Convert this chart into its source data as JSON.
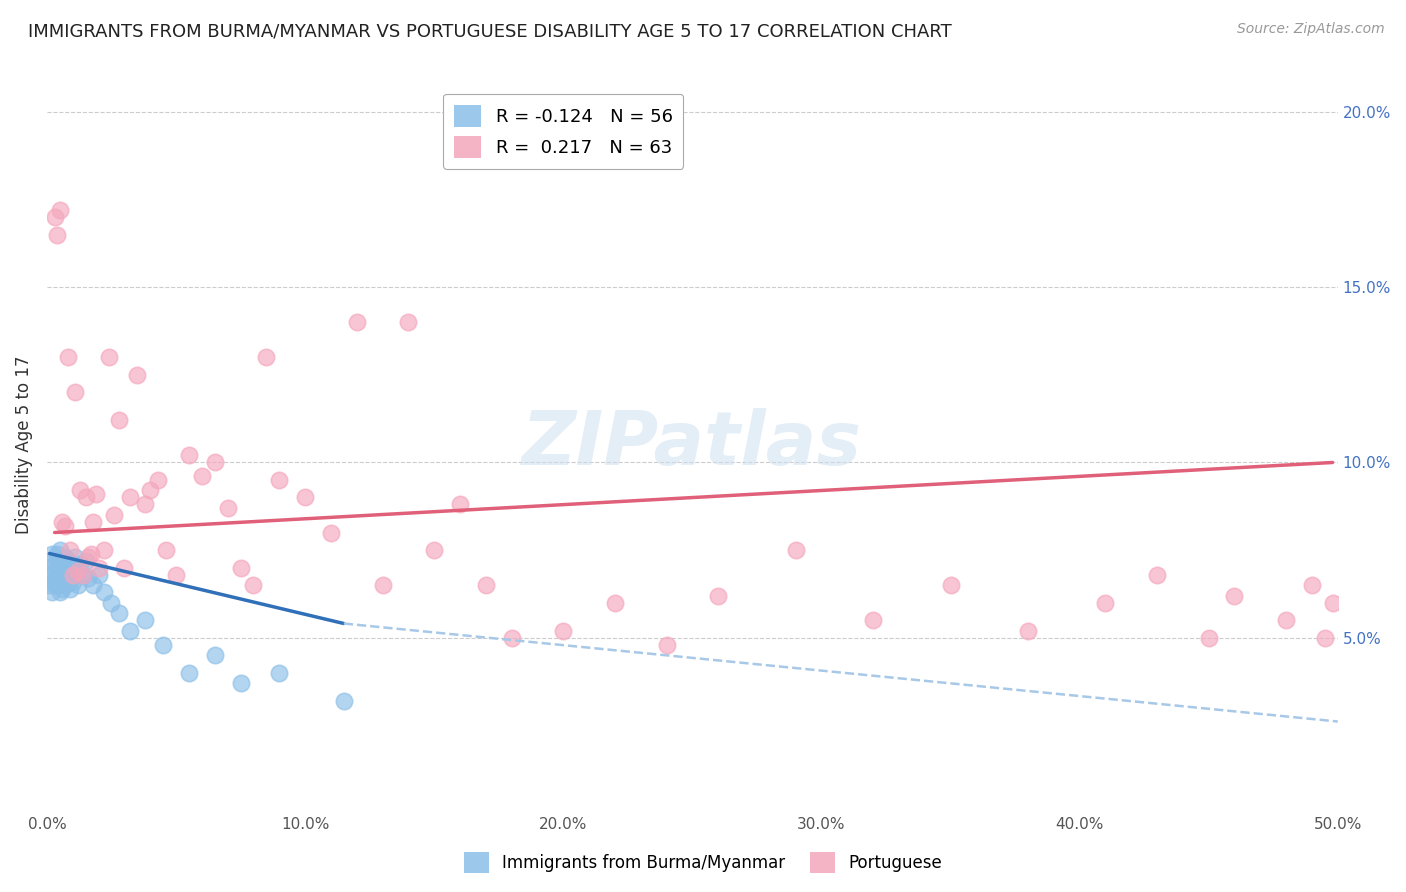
{
  "title": "IMMIGRANTS FROM BURMA/MYANMAR VS PORTUGUESE DISABILITY AGE 5 TO 17 CORRELATION CHART",
  "source": "Source: ZipAtlas.com",
  "ylabel": "Disability Age 5 to 17",
  "xlim": [
    0.0,
    0.5
  ],
  "ylim": [
    0.0,
    0.21
  ],
  "xticks": [
    0.0,
    0.1,
    0.2,
    0.3,
    0.4,
    0.5
  ],
  "xticklabels": [
    "0.0%",
    "10.0%",
    "20.0%",
    "30.0%",
    "40.0%",
    "50.0%"
  ],
  "yticks": [
    0.05,
    0.1,
    0.15,
    0.2
  ],
  "yticklabels": [
    "5.0%",
    "10.0%",
    "15.0%",
    "20.0%"
  ],
  "legend1_label": "R = -0.124   N = 56",
  "legend2_label": "R =  0.217   N = 63",
  "series1_color": "#8bbfe8",
  "series2_color": "#f4a7bc",
  "line1_color": "#3070b8",
  "line2_color": "#e0607a",
  "line1_dashed_color": "#a8c8e8",
  "watermark": "ZIPatlas",
  "grid_color": "#cccccc",
  "title_color": "#222222",
  "axis_label_color": "#333333",
  "right_axis_label_color": "#4472C4",
  "scatter1_x": [
    0.001,
    0.001,
    0.002,
    0.002,
    0.002,
    0.003,
    0.003,
    0.003,
    0.003,
    0.004,
    0.004,
    0.004,
    0.004,
    0.005,
    0.005,
    0.005,
    0.005,
    0.005,
    0.006,
    0.006,
    0.006,
    0.006,
    0.007,
    0.007,
    0.007,
    0.007,
    0.007,
    0.008,
    0.008,
    0.008,
    0.009,
    0.009,
    0.009,
    0.01,
    0.01,
    0.011,
    0.011,
    0.012,
    0.012,
    0.013,
    0.014,
    0.015,
    0.016,
    0.018,
    0.02,
    0.022,
    0.025,
    0.028,
    0.032,
    0.038,
    0.045,
    0.055,
    0.065,
    0.075,
    0.09,
    0.115
  ],
  "scatter1_y": [
    0.072,
    0.065,
    0.068,
    0.074,
    0.063,
    0.069,
    0.065,
    0.071,
    0.067,
    0.07,
    0.068,
    0.074,
    0.065,
    0.067,
    0.072,
    0.068,
    0.063,
    0.075,
    0.069,
    0.066,
    0.071,
    0.064,
    0.068,
    0.073,
    0.065,
    0.07,
    0.067,
    0.066,
    0.072,
    0.069,
    0.071,
    0.067,
    0.064,
    0.07,
    0.066,
    0.073,
    0.068,
    0.069,
    0.065,
    0.071,
    0.068,
    0.072,
    0.067,
    0.065,
    0.068,
    0.063,
    0.06,
    0.057,
    0.052,
    0.055,
    0.048,
    0.04,
    0.045,
    0.037,
    0.04,
    0.032
  ],
  "scatter2_x": [
    0.003,
    0.004,
    0.005,
    0.006,
    0.007,
    0.008,
    0.009,
    0.01,
    0.011,
    0.012,
    0.013,
    0.014,
    0.015,
    0.016,
    0.017,
    0.018,
    0.019,
    0.02,
    0.022,
    0.024,
    0.026,
    0.028,
    0.03,
    0.032,
    0.035,
    0.038,
    0.04,
    0.043,
    0.046,
    0.05,
    0.055,
    0.06,
    0.065,
    0.07,
    0.075,
    0.08,
    0.085,
    0.09,
    0.1,
    0.11,
    0.12,
    0.13,
    0.14,
    0.15,
    0.16,
    0.17,
    0.18,
    0.2,
    0.22,
    0.24,
    0.26,
    0.29,
    0.32,
    0.35,
    0.38,
    0.41,
    0.43,
    0.45,
    0.46,
    0.48,
    0.49,
    0.495,
    0.498
  ],
  "scatter2_y": [
    0.17,
    0.165,
    0.172,
    0.083,
    0.082,
    0.13,
    0.075,
    0.068,
    0.12,
    0.069,
    0.092,
    0.068,
    0.09,
    0.073,
    0.074,
    0.083,
    0.091,
    0.07,
    0.075,
    0.13,
    0.085,
    0.112,
    0.07,
    0.09,
    0.125,
    0.088,
    0.092,
    0.095,
    0.075,
    0.068,
    0.102,
    0.096,
    0.1,
    0.087,
    0.07,
    0.065,
    0.13,
    0.095,
    0.09,
    0.08,
    0.14,
    0.065,
    0.14,
    0.075,
    0.088,
    0.065,
    0.05,
    0.052,
    0.06,
    0.048,
    0.062,
    0.075,
    0.055,
    0.065,
    0.052,
    0.06,
    0.068,
    0.05,
    0.062,
    0.055,
    0.065,
    0.05,
    0.06
  ],
  "line1_x_start": 0.001,
  "line1_x_solid_end": 0.115,
  "line1_x_dash_end": 0.5,
  "line1_y_start": 0.074,
  "line1_y_solid_end": 0.054,
  "line1_y_dash_end": 0.026,
  "line2_x_start": 0.003,
  "line2_x_end": 0.498,
  "line2_y_start": 0.08,
  "line2_y_end": 0.1
}
